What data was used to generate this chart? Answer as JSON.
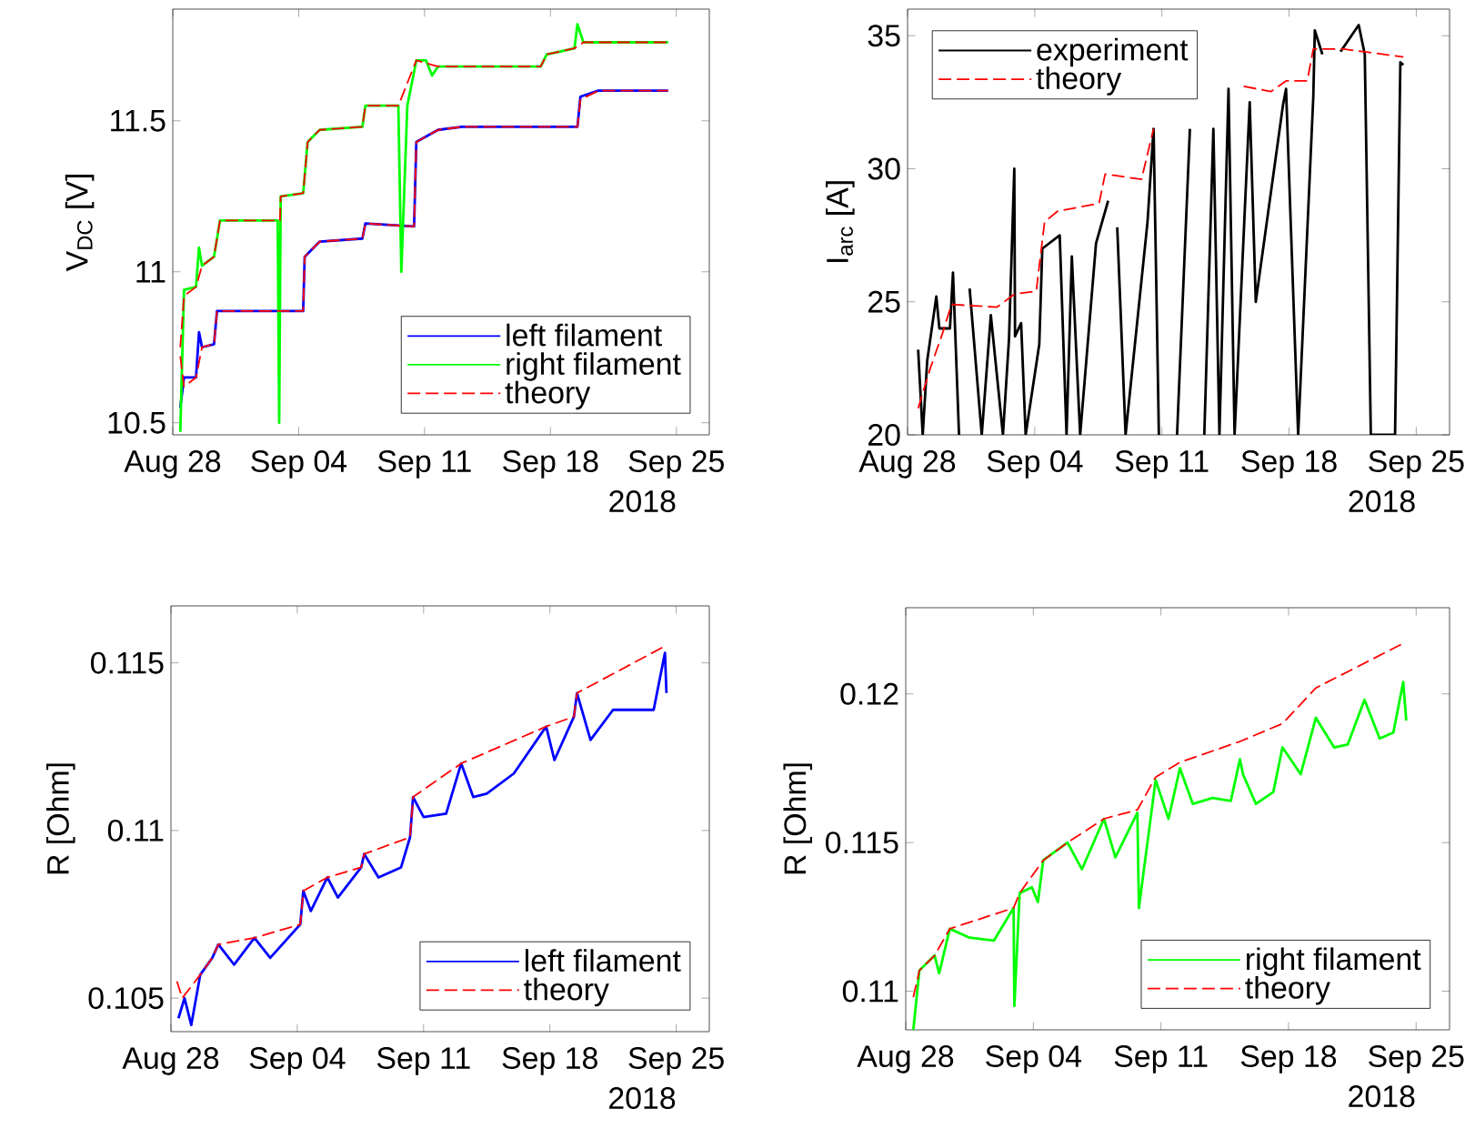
{
  "chart_data": [
    {
      "type": "line",
      "ylabel": "V$_{DC}$ [V]",
      "xlabel": "2018",
      "xlim": [
        "2018-08-28",
        "2018-09-26T20:00"
      ],
      "ylim": [
        10.46,
        11.87
      ],
      "xticks": [
        {
          "value": "2018-08-28",
          "label": "Aug 28"
        },
        {
          "value": "2018-09-04",
          "label": "Sep 04"
        },
        {
          "value": "2018-09-11",
          "label": "Sep 11"
        },
        {
          "value": "2018-09-18",
          "label": "Sep 18"
        },
        {
          "value": "2018-09-25",
          "label": "Sep 25"
        }
      ],
      "yticks": [
        10.5,
        11,
        11.5
      ],
      "legend": "bottom right",
      "series": [
        {
          "name": "left filament",
          "color": "#0000ff",
          "x": [
            "2018-08-28T10:00",
            "2018-08-28T15:00",
            "2018-08-29T07:00",
            "2018-08-29T11:00",
            "2018-08-29T15:00",
            "2018-08-30T07:00",
            "2018-08-30T11:00",
            "2018-09-04T06:00",
            "2018-09-04T08:00",
            "2018-09-05T04:00",
            "2018-09-07T13:00",
            "2018-09-07T17:00",
            "2018-09-10T10:00",
            "2018-09-10T13:00",
            "2018-09-11T18:00",
            "2018-09-13T02:00",
            "2018-09-19T12:00",
            "2018-09-19T16:00",
            "2018-09-20T16:00",
            "2018-09-24T13:00"
          ],
          "values": [
            10.55,
            10.65,
            10.65,
            10.8,
            10.75,
            10.76,
            10.87,
            10.87,
            11.05,
            11.1,
            11.11,
            11.16,
            11.15,
            11.43,
            11.47,
            11.48,
            11.48,
            11.58,
            11.6,
            11.6
          ]
        },
        {
          "name": "right filament",
          "color": "#00ff00",
          "x": [
            "2018-08-28T10:00",
            "2018-08-28T15:00",
            "2018-08-29T07:00",
            "2018-08-29T11:00",
            "2018-08-29T15:00",
            "2018-08-30T07:00",
            "2018-08-30T15:00",
            "2018-09-02T20:00",
            "2018-09-02T22:00",
            "2018-09-03T00:00",
            "2018-09-04T06:00",
            "2018-09-04T12:00",
            "2018-09-05T04:00",
            "2018-09-07T13:00",
            "2018-09-07T17:00",
            "2018-09-09T13:00",
            "2018-09-09T17:00",
            "2018-09-10T01:00",
            "2018-09-10T13:00",
            "2018-09-11T02:00",
            "2018-09-11T10:00",
            "2018-09-11T18:00",
            "2018-09-17T11:00",
            "2018-09-17T19:00",
            "2018-09-19T08:00",
            "2018-09-19T12:00",
            "2018-09-19T20:00",
            "2018-09-24T13:00"
          ],
          "values": [
            10.47,
            10.94,
            10.95,
            11.08,
            11.02,
            11.05,
            11.17,
            11.17,
            10.5,
            11.25,
            11.26,
            11.43,
            11.47,
            11.48,
            11.55,
            11.55,
            11.0,
            11.55,
            11.7,
            11.7,
            11.65,
            11.68,
            11.68,
            11.72,
            11.74,
            11.82,
            11.76,
            11.76
          ]
        },
        {
          "name": "theory",
          "color": "#ff0000",
          "line_style": "dashed",
          "x": [
            "2018-08-28T10:00",
            "2018-08-28T15:00",
            "2018-08-29T07:00",
            "2018-08-29T15:00",
            "2018-08-30T07:00",
            "2018-08-30T11:00",
            "2018-09-04T06:00",
            "2018-09-04T08:00",
            "2018-09-05T04:00",
            "2018-09-07T13:00",
            "2018-09-07T17:00",
            "2018-09-10T10:00",
            "2018-09-10T13:00",
            "2018-09-11T18:00",
            "2018-09-13T02:00",
            "2018-09-19T12:00",
            "2018-09-19T16:00",
            "2018-09-20T16:00",
            "2018-09-24T13:00"
          ],
          "values": [
            10.72,
            10.62,
            10.65,
            10.75,
            10.76,
            10.87,
            10.87,
            11.05,
            11.1,
            11.11,
            11.16,
            11.15,
            11.43,
            11.47,
            11.48,
            11.48,
            11.57,
            11.6,
            11.6
          ]
        },
        {
          "color": "#ff0000",
          "line_style": "dashed",
          "x": [
            "2018-08-28T10:00",
            "2018-08-28T15:00",
            "2018-08-29T07:00",
            "2018-08-29T15:00",
            "2018-08-30T07:00",
            "2018-08-30T15:00",
            "2018-09-02T23:00",
            "2018-09-03T00:00",
            "2018-09-04T06:00",
            "2018-09-04T12:00",
            "2018-09-05T04:00",
            "2018-09-07T13:00",
            "2018-09-07T17:00",
            "2018-09-09T13:00",
            "2018-09-10T13:00",
            "2018-09-11T18:00",
            "2018-09-17T11:00",
            "2018-09-17T19:00",
            "2018-09-19T08:00",
            "2018-09-19T20:00",
            "2018-09-24T13:00"
          ],
          "values": [
            10.75,
            10.92,
            10.95,
            11.02,
            11.05,
            11.17,
            11.17,
            11.25,
            11.26,
            11.43,
            11.47,
            11.48,
            11.55,
            11.55,
            11.7,
            11.68,
            11.68,
            11.72,
            11.74,
            11.76,
            11.76
          ]
        }
      ]
    },
    {
      "type": "line",
      "ylabel": "I$_{arc}$ [A]",
      "xlabel": "2018",
      "xlim": [
        "2018-08-28",
        "2018-09-26T20:00"
      ],
      "ylim": [
        20,
        36
      ],
      "xticks": [
        {
          "value": "2018-08-28",
          "label": "Aug 28"
        },
        {
          "value": "2018-09-04",
          "label": "Sep 04"
        },
        {
          "value": "2018-09-11",
          "label": "Sep 11"
        },
        {
          "value": "2018-09-18",
          "label": "Sep 18"
        },
        {
          "value": "2018-09-25",
          "label": "Sep 25"
        }
      ],
      "yticks": [
        20,
        25,
        30,
        35
      ],
      "legend": "top left",
      "series": [
        {
          "name": "experiment",
          "color": "#000000",
          "x": [
            "2018-08-28T14:00",
            "2018-08-28T20:00",
            "2018-08-29T02:00",
            "2018-08-29T14:00",
            "2018-08-29T18:00",
            "2018-08-30T08:00",
            "2018-08-30T12:00",
            "2018-08-30T20:00",
            "2018-08-31T08:00",
            "2018-08-31T10:00",
            "2018-09-01T02:00",
            "2018-09-01T14:00",
            "2018-09-02T06:00",
            "2018-09-02T14:00",
            "2018-09-02T21:00",
            "2018-09-02T22:00",
            "2018-09-03T06:00",
            "2018-09-03T12:00",
            "2018-09-04T06:00",
            "2018-09-04T10:00",
            "2018-09-05T09:00",
            "2018-09-05T18:00",
            "2018-09-06T01:00",
            "2018-09-06T12:00",
            "2018-09-07T09:00",
            "2018-09-08T01:00",
            "2018-09-08T05:00",
            "2018-09-08T13:00",
            "2018-09-09T00:00",
            "2018-09-10T05:00",
            "2018-09-10T13:00",
            "2018-09-10T20:00",
            "2018-09-11T13:00",
            "2018-09-11T20:00",
            "2018-09-12T13:00",
            "2018-09-12T21:00",
            "2018-09-13T08:00",
            "2018-09-13T20:00",
            "2018-09-14T04:00",
            "2018-09-14T16:00",
            "2018-09-15T00:00",
            "2018-09-15T20:00",
            "2018-09-16T04:00",
            "2018-09-17T16:00",
            "2018-09-17T20:00",
            "2018-09-18T12:00",
            "2018-09-19T08:00",
            "2018-09-19T10:00",
            "2018-09-19T20:00",
            "2018-09-20T12:00",
            "2018-09-20T20:00",
            "2018-09-21T20:00",
            "2018-09-22T04:00",
            "2018-09-22T12:00",
            "2018-09-23T06:00",
            "2018-09-23T20:00",
            "2018-09-24T03:00",
            "2018-09-24T07:00"
          ],
          "values": [
            23.2,
            20,
            22.8,
            25.2,
            24.0,
            24.0,
            26.1,
            20,
            null,
            25.5,
            20,
            24.5,
            20,
            23.6,
            30,
            23.7,
            24.2,
            20,
            23.4,
            27.0,
            27.5,
            20,
            26.7,
            20,
            27.2,
            28.8,
            null,
            27.8,
            20,
            28.0,
            31.5,
            20,
            null,
            20,
            31.5,
            null,
            20,
            31.5,
            20,
            33.0,
            20,
            32.5,
            25,
            32.4,
            33.0,
            20,
            32.7,
            35.2,
            34.3,
            null,
            34.4,
            35.4,
            34.3,
            20,
            20,
            20,
            34.0,
            33.9
          ]
        },
        {
          "name": "theory",
          "color": "#ff0000",
          "line_style": "dashed",
          "x": [
            "2018-08-28T14:00",
            "2018-08-29T06:00",
            "2018-08-29T22:00",
            "2018-08-30T10:00",
            "2018-09-01T22:00",
            "2018-09-02T22:00",
            "2018-09-04T02:00",
            "2018-09-04T13:00",
            "2018-09-05T06:00",
            "2018-09-07T13:00",
            "2018-09-07T21:00",
            "2018-09-09T21:00",
            "2018-09-10T13:00",
            "2018-09-12T12:00",
            "2018-09-15T12:00",
            "2018-09-17T00:00",
            "2018-09-17T20:00",
            "2018-09-19T00:00",
            "2018-09-19T08:00",
            "2018-09-21T00:00",
            "2018-09-24T07:00"
          ],
          "values": [
            21.0,
            22.5,
            23.8,
            24.9,
            24.8,
            25.3,
            25.4,
            28.0,
            28.4,
            28.7,
            29.8,
            29.6,
            31.5,
            null,
            33.1,
            32.9,
            33.3,
            33.3,
            34.5,
            34.5,
            34.2
          ]
        }
      ]
    },
    {
      "type": "line",
      "ylabel": "R [Ohm]",
      "xlabel": "2018",
      "xlim": [
        "2018-08-28",
        "2018-09-26T20:00"
      ],
      "ylim": [
        0.104,
        0.1167
      ],
      "xticks": [
        {
          "value": "2018-08-28",
          "label": "Aug 28"
        },
        {
          "value": "2018-09-04",
          "label": "Sep 04"
        },
        {
          "value": "2018-09-11",
          "label": "Sep 11"
        },
        {
          "value": "2018-09-18",
          "label": "Sep 18"
        },
        {
          "value": "2018-09-25",
          "label": "Sep 25"
        }
      ],
      "yticks": [
        0.105,
        0.11,
        0.115
      ],
      "legend": "bottom right",
      "series": [
        {
          "name": "left filament",
          "color": "#0000ff",
          "x": [
            "2018-08-28T10:00",
            "2018-08-28T18:00",
            "2018-08-29T03:00",
            "2018-08-29T11:00",
            "2018-08-29T15:00",
            "2018-08-30T07:00",
            "2018-08-30T15:00",
            "2018-08-31T12:00",
            "2018-09-01T15:00",
            "2018-09-02T12:00",
            "2018-09-04T04:00",
            "2018-09-04T08:00",
            "2018-09-04T18:00",
            "2018-09-05T16:00",
            "2018-09-06T06:00",
            "2018-09-07T13:00",
            "2018-09-07T17:00",
            "2018-09-08T12:00",
            "2018-09-09T18:00",
            "2018-09-10T06:00",
            "2018-09-10T10:00",
            "2018-09-11T00:00",
            "2018-09-12T06:00",
            "2018-09-13T02:00",
            "2018-09-13T18:00",
            "2018-09-14T12:00",
            "2018-09-16T00:00",
            "2018-09-17T19:00",
            "2018-09-18T06:00",
            "2018-09-19T08:00",
            "2018-09-19T12:00",
            "2018-09-20T06:00",
            "2018-09-21T12:00",
            "2018-09-22T18:00",
            "2018-09-23T18:00",
            "2018-09-24T09:00",
            "2018-09-24T11:00"
          ],
          "values": [
            0.1044,
            0.105,
            0.1042,
            0.1052,
            0.1057,
            0.1062,
            0.1066,
            0.106,
            0.1068,
            0.1062,
            0.1072,
            0.1082,
            0.1076,
            0.1086,
            0.108,
            0.1089,
            0.1093,
            0.1086,
            0.1089,
            0.1098,
            0.111,
            0.1104,
            0.1105,
            0.112,
            0.111,
            0.1111,
            0.1117,
            0.1131,
            0.1121,
            0.1134,
            0.1141,
            0.1127,
            0.1136,
            0.1136,
            0.1136,
            0.1153,
            0.1141
          ]
        },
        {
          "name": "theory",
          "color": "#ff0000",
          "line_style": "dashed",
          "x": [
            "2018-08-28T08:00",
            "2018-08-28T15:00",
            "2018-08-29T15:00",
            "2018-08-30T07:00",
            "2018-08-30T15:00",
            "2018-09-01T15:00",
            "2018-09-04T04:00",
            "2018-09-04T08:00",
            "2018-09-05T16:00",
            "2018-09-07T13:00",
            "2018-09-07T17:00",
            "2018-09-10T06:00",
            "2018-09-10T10:00",
            "2018-09-13T02:00",
            "2018-09-17T19:00",
            "2018-09-19T08:00",
            "2018-09-19T12:00",
            "2018-09-24T09:00"
          ],
          "values": [
            0.1055,
            0.105,
            0.1057,
            0.1062,
            0.1066,
            0.1068,
            0.1072,
            0.1082,
            0.1086,
            0.1089,
            0.1093,
            0.1098,
            0.111,
            0.112,
            0.1131,
            0.1134,
            0.1141,
            0.1155
          ]
        }
      ]
    },
    {
      "type": "line",
      "ylabel": "R [Ohm]",
      "xlabel": "2018",
      "xlim": [
        "2018-08-28",
        "2018-09-26T20:00"
      ],
      "ylim": [
        0.1087,
        0.1229
      ],
      "xticks": [
        {
          "value": "2018-08-28",
          "label": "Aug 28"
        },
        {
          "value": "2018-09-04",
          "label": "Sep 04"
        },
        {
          "value": "2018-09-11",
          "label": "Sep 11"
        },
        {
          "value": "2018-09-18",
          "label": "Sep 18"
        },
        {
          "value": "2018-09-25",
          "label": "Sep 25"
        }
      ],
      "yticks": [
        0.11,
        0.115,
        0.12
      ],
      "legend": "bottom right",
      "series": [
        {
          "name": "right filament",
          "color": "#00ff00",
          "x": [
            "2018-08-28T10:00",
            "2018-08-28T18:00",
            "2018-08-29T14:00",
            "2018-08-29T20:00",
            "2018-08-30T10:00",
            "2018-08-31T12:00",
            "2018-09-01T20:00",
            "2018-09-02T22:00",
            "2018-09-02T23:00",
            "2018-09-03T06:00",
            "2018-09-03T22:00",
            "2018-09-04T06:00",
            "2018-09-04T13:00",
            "2018-09-05T21:00",
            "2018-09-06T16:00",
            "2018-09-07T21:00",
            "2018-09-08T12:00",
            "2018-09-09T17:00",
            "2018-09-09T19:00",
            "2018-09-10T17:00",
            "2018-09-11T10:00",
            "2018-09-12T01:00",
            "2018-09-12T18:00",
            "2018-09-13T20:00",
            "2018-09-14T20:00",
            "2018-09-15T08:00",
            "2018-09-15T12:00",
            "2018-09-16T05:00",
            "2018-09-17T04:00",
            "2018-09-17T16:00",
            "2018-09-18T16:00",
            "2018-09-19T12:00",
            "2018-09-20T12:00",
            "2018-09-21T06:00",
            "2018-09-22T04:00",
            "2018-09-23T00:00",
            "2018-09-23T18:00",
            "2018-09-24T07:00",
            "2018-09-24T11:00"
          ],
          "values": [
            0.1087,
            0.1107,
            0.1112,
            0.1106,
            0.1121,
            0.1118,
            0.1117,
            0.1128,
            0.1095,
            0.1133,
            0.1135,
            0.113,
            0.1144,
            0.115,
            0.1141,
            0.1158,
            0.1145,
            0.116,
            0.1128,
            0.1171,
            0.1158,
            0.1175,
            0.1163,
            0.1165,
            0.1164,
            0.1178,
            0.1173,
            0.1163,
            0.1167,
            0.1182,
            0.1173,
            0.1192,
            0.1182,
            0.1183,
            0.1198,
            0.1185,
            0.1187,
            0.1204,
            0.1191
          ]
        },
        {
          "name": "theory",
          "color": "#ff0000",
          "line_style": "dashed",
          "x": [
            "2018-08-28T10:00",
            "2018-08-28T18:00",
            "2018-08-29T14:00",
            "2018-08-30T10:00",
            "2018-09-02T22:00",
            "2018-09-03T06:00",
            "2018-09-04T13:00",
            "2018-09-05T21:00",
            "2018-09-07T21:00",
            "2018-09-09T17:00",
            "2018-09-10T17:00",
            "2018-09-12T01:00",
            "2018-09-15T08:00",
            "2018-09-17T16:00",
            "2018-09-19T12:00",
            "2018-09-24T07:00"
          ],
          "values": [
            0.1098,
            0.1107,
            0.1112,
            0.1121,
            0.1128,
            0.1133,
            0.1144,
            0.115,
            0.1158,
            0.1161,
            0.1172,
            0.1177,
            0.1184,
            0.119,
            0.1202,
            0.1217
          ]
        }
      ]
    }
  ]
}
